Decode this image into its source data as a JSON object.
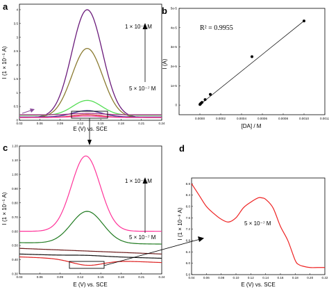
{
  "chart_data": [
    {
      "panel": "a",
      "type": "line",
      "xlabel": "E (V) vs. SCE",
      "ylabel": "I (1 × 10⁻⁵ A)",
      "xlim": [
        0.03,
        0.24
      ],
      "ylim": [
        0,
        4.2
      ],
      "xticks": [
        "0.03",
        "0.06",
        "0.09",
        "0.12",
        "0.15",
        "0.18",
        "0.21",
        "0.24"
      ],
      "yticks": [
        "0",
        "0.5",
        "1",
        "1.5",
        "2",
        "2.5",
        "3",
        "3.5",
        "4"
      ],
      "annotations": [
        "1 × 10⁻⁵ M",
        "5 × 10⁻⁷ M"
      ],
      "series": [
        {
          "color": "#6a1a7a",
          "peak_x": 0.13,
          "peak_y": 4.0,
          "base": 0.1
        },
        {
          "color": "#8a7a30",
          "peak_x": 0.13,
          "peak_y": 2.6,
          "base": 0.1
        },
        {
          "color": "#55dd55",
          "peak_x": 0.13,
          "peak_y": 0.72,
          "base": 0.18
        },
        {
          "color": "#3a2a8a",
          "peak_x": 0.13,
          "peak_y": 0.35,
          "base": 0.12
        },
        {
          "color": "#cc2222",
          "peak_x": 0.13,
          "peak_y": 0.2,
          "base": 0.1
        },
        {
          "color": "#ff44aa",
          "peak_x": 0.13,
          "peak_y": 0.15,
          "base": 0.1
        },
        {
          "color": "#aa3388",
          "peak_x": 0.13,
          "peak_y": 0.25,
          "base": 0.2
        }
      ]
    },
    {
      "panel": "b",
      "type": "scatter",
      "xlabel": "[DA] / M",
      "ylabel": "I (A)",
      "xlim": [
        -0.0002,
        0.0012
      ],
      "ylim": [
        -5e-06,
        5e-05
      ],
      "xticks": [
        "0.0000",
        "0.0002",
        "0.0004",
        "0.0006",
        "0.0008",
        "0.0010",
        "0.0012"
      ],
      "yticks": [
        "0",
        "1e-5",
        "2e-5",
        "3e-5",
        "4e-5",
        "5e-5"
      ],
      "annotation": "R² = 0.9955",
      "points": [
        {
          "x": 5e-07,
          "y": 3e-07
        },
        {
          "x": 5e-06,
          "y": 6e-07
        },
        {
          "x": 1e-05,
          "y": 9e-07
        },
        {
          "x": 2e-05,
          "y": 1.4e-06
        },
        {
          "x": 5e-05,
          "y": 2.8e-06
        },
        {
          "x": 0.0001,
          "y": 5.5e-06
        },
        {
          "x": 0.0005,
          "y": 2.5e-05
        },
        {
          "x": 0.001,
          "y": 4.35e-05
        }
      ],
      "fit": {
        "x": [
          0.0,
          0.001
        ],
        "y": [
          2e-07,
          4.35e-05
        ]
      }
    },
    {
      "panel": "c",
      "type": "line",
      "xlabel": "E (V) vs. SCE",
      "ylabel": "I (1 × 10⁻⁵ A)",
      "xlim": [
        0.03,
        0.24
      ],
      "ylim": [
        0.3,
        1.2
      ],
      "xticks": [
        "0.03",
        "0.06",
        "0.09",
        "0.12",
        "0.15",
        "0.18",
        "0.21",
        "0.24"
      ],
      "yticks": [
        "0.30",
        "0.40",
        "0.50",
        "0.60",
        "0.70",
        "0.80",
        "0.90",
        "1.00",
        "1.10",
        "1.20"
      ],
      "annotations": [
        "1 × 10⁻⁵ M",
        "5 × 10⁻⁷ M"
      ],
      "series": [
        {
          "color": "#ff3399",
          "peak_x": 0.128,
          "peak_y": 1.13,
          "start": 0.6,
          "end": 0.6
        },
        {
          "color": "#1f7a1f",
          "peak_x": 0.13,
          "peak_y": 0.74,
          "start": 0.52,
          "end": 0.51
        },
        {
          "color": "#6b1a1a",
          "peak_x": 0.13,
          "peak_y": 0.46,
          "start": 0.48,
          "end": 0.44
        },
        {
          "color": "#111111",
          "peak_x": 0.13,
          "peak_y": 0.43,
          "start": 0.44,
          "end": 0.41
        },
        {
          "color": "#dd2222",
          "peak_x": 0.13,
          "peak_y": 0.36,
          "start": 0.42,
          "end": 0.38
        }
      ]
    },
    {
      "panel": "d",
      "type": "line",
      "xlabel": "E (V) vs. SCE",
      "ylabel": "I (1 × 10⁻⁸ A)",
      "xlim": [
        0.04,
        0.22
      ],
      "ylim": [
        5.6,
        9.0
      ],
      "xticks": [
        "0.04",
        "0.06",
        "0.08",
        "0.10",
        "0.12",
        "0.14",
        "0.16",
        "0.18",
        "0.20",
        "0.22"
      ],
      "yticks": [
        "5.6",
        "6.0",
        "6.4",
        "6.8",
        "7.2",
        "7.6",
        "8.0",
        "8.4",
        "8.8"
      ],
      "annotation": "5 × 10⁻⁷ M",
      "series": [
        {
          "color": "#ee2222",
          "x": [
            0.04,
            0.05,
            0.06,
            0.07,
            0.08,
            0.09,
            0.1,
            0.11,
            0.12,
            0.13,
            0.135,
            0.14,
            0.15,
            0.16,
            0.17,
            0.18,
            0.185,
            0.19,
            0.2,
            0.21,
            0.22
          ],
          "y": [
            8.8,
            8.4,
            8.0,
            7.75,
            7.55,
            7.45,
            7.6,
            7.95,
            8.15,
            8.3,
            8.3,
            8.25,
            7.95,
            7.3,
            6.8,
            6.1,
            5.95,
            5.9,
            5.85,
            5.85,
            5.85
          ]
        }
      ]
    }
  ],
  "panels": {
    "a": {
      "letter": "a",
      "annot_top": "1 × 10⁻⁵ M",
      "annot_bottom": "5 × 10⁻⁷ M"
    },
    "b": {
      "letter": "b",
      "annot": "R² = 0.9955"
    },
    "c": {
      "letter": "c",
      "annot_top": "1 × 10⁻⁵ M",
      "annot_bottom": "5 × 10⁻⁷ M"
    },
    "d": {
      "letter": "d",
      "annot": "5 × 10⁻⁷ M"
    }
  },
  "colors": {
    "axis": "#000000",
    "pointer": "#222222"
  }
}
